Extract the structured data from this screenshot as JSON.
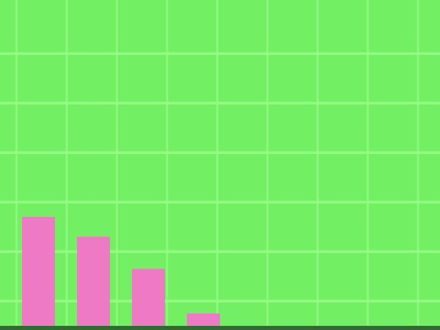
{
  "colors": {
    "background": "#72f061",
    "grid": "#98fb88",
    "bar": "#ee7ac6",
    "axis": "#2f6c30"
  },
  "chart_data": {
    "type": "bar",
    "categories": [
      "",
      "",
      "",
      ""
    ],
    "values": [
      4.4,
      3.6,
      2.3,
      0.5
    ],
    "ylim": [
      0,
      12
    ],
    "grid": true,
    "legend": "none"
  }
}
